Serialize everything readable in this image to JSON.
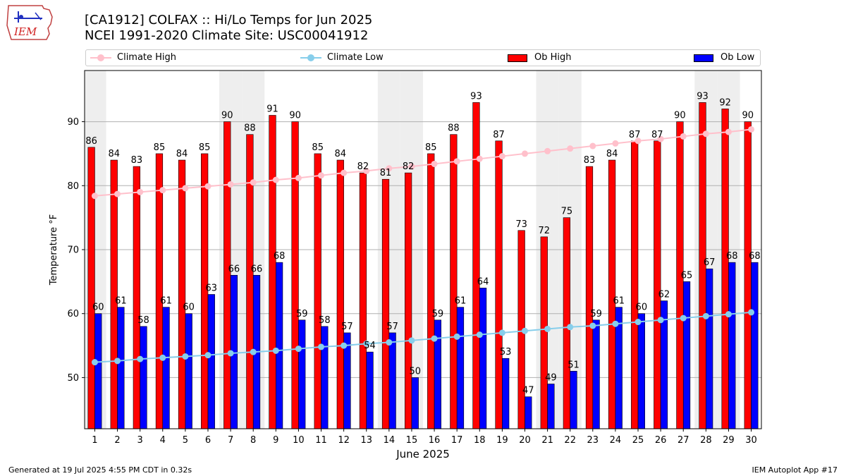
{
  "header": {
    "title_line1": "[CA1912] COLFAX :: Hi/Lo Temps for Jun 2025",
    "title_line2": "NCEI 1991-2020 Climate Site: USC00041912",
    "logo_text": "IEM"
  },
  "legend": {
    "climate_high": "Climate High",
    "climate_low": "Climate Low",
    "ob_high": "Ob High",
    "ob_low": "Ob Low"
  },
  "footer": {
    "generated": "Generated at 19 Jul 2025 4:55 PM CDT in 0.32s",
    "app": "IEM Autoplot App #17"
  },
  "colors": {
    "ob_high": "#ff0000",
    "ob_low": "#0000ff",
    "climate_high": "#ffc0cb",
    "climate_low": "#87ceeb",
    "weekend_shade": "#eeeeee"
  },
  "chart_data": {
    "type": "bar",
    "xlabel": "June 2025",
    "ylabel": "Temperature °F",
    "ylim": [
      42,
      98
    ],
    "yticks": [
      50,
      60,
      70,
      80,
      90
    ],
    "grid": "horizontal",
    "legend_position": "top",
    "categories": [
      "1",
      "2",
      "3",
      "4",
      "5",
      "6",
      "7",
      "8",
      "9",
      "10",
      "11",
      "12",
      "13",
      "14",
      "15",
      "16",
      "17",
      "18",
      "19",
      "20",
      "21",
      "22",
      "23",
      "24",
      "25",
      "26",
      "27",
      "28",
      "29",
      "30"
    ],
    "weekend_days": [
      1,
      7,
      8,
      14,
      15,
      21,
      22,
      28,
      29
    ],
    "series": [
      {
        "name": "Ob High",
        "type": "bar",
        "values": [
          86,
          84,
          83,
          85,
          84,
          85,
          90,
          88,
          91,
          90,
          85,
          84,
          82,
          81,
          82,
          85,
          88,
          93,
          87,
          73,
          72,
          75,
          83,
          84,
          87,
          87,
          90,
          93,
          92,
          90
        ]
      },
      {
        "name": "Ob Low",
        "type": "bar",
        "values": [
          60,
          61,
          58,
          61,
          60,
          63,
          66,
          66,
          68,
          59,
          58,
          57,
          54,
          57,
          50,
          59,
          61,
          64,
          53,
          47,
          49,
          51,
          59,
          61,
          60,
          62,
          65,
          67,
          68,
          68
        ]
      },
      {
        "name": "Climate High",
        "type": "line",
        "values": [
          78.4,
          78.7,
          79.0,
          79.3,
          79.6,
          79.9,
          80.2,
          80.5,
          80.9,
          81.2,
          81.6,
          82.0,
          82.3,
          82.7,
          83.0,
          83.4,
          83.8,
          84.2,
          84.6,
          85.0,
          85.4,
          85.8,
          86.2,
          86.6,
          87.0,
          87.3,
          87.7,
          88.1,
          88.4,
          88.8
        ]
      },
      {
        "name": "Climate Low",
        "type": "line",
        "values": [
          52.4,
          52.6,
          52.9,
          53.1,
          53.3,
          53.5,
          53.8,
          54.0,
          54.2,
          54.5,
          54.8,
          55.0,
          55.3,
          55.5,
          55.8,
          56.1,
          56.4,
          56.7,
          57.0,
          57.3,
          57.6,
          57.9,
          58.1,
          58.4,
          58.7,
          59.0,
          59.3,
          59.6,
          59.9,
          60.2
        ]
      }
    ]
  }
}
